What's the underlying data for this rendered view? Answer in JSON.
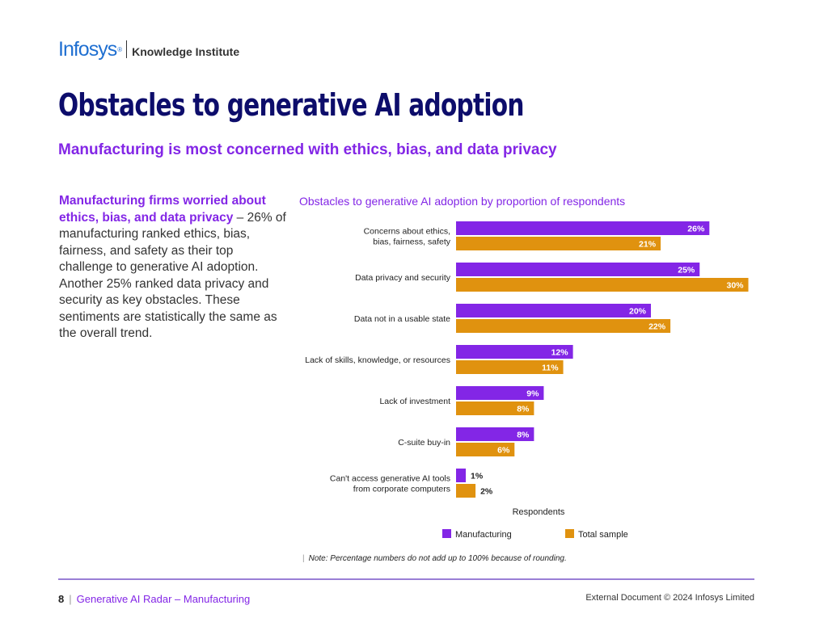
{
  "header": {
    "brand": "Infosys",
    "registered": "®",
    "sub_brand": "Knowledge Institute"
  },
  "page_title": "Obstacles to generative AI adoption",
  "subtitle": "Manufacturing is most concerned with ethics, bias, and data privacy",
  "body": {
    "highlight": "Manufacturing firms worried about ethics, bias, and data privacy",
    "text": " – 26% of manufacturing ranked ethics, bias, fairness, and safety as their top challenge to generative AI adoption. Another 25% ranked data privacy and security as key obstacles. These sentiments are statistically the same as the overall trend."
  },
  "chart_data": {
    "type": "bar",
    "orientation": "horizontal",
    "title": "Obstacles to generative AI adoption by proportion of respondents",
    "xlabel": "Respondents",
    "xlim": [
      0,
      30
    ],
    "categories": [
      [
        "Concerns about ethics,",
        "bias, fairness, safety"
      ],
      [
        "Data privacy and security"
      ],
      [
        "Data not in a usable state"
      ],
      [
        "Lack of skills, knowledge, or resources"
      ],
      [
        "Lack of investment"
      ],
      [
        "C-suite buy-in"
      ],
      [
        "Can't access generative AI tools",
        "from corporate computers"
      ]
    ],
    "series": [
      {
        "name": "Manufacturing",
        "color": "#8326e6",
        "values": [
          26,
          25,
          20,
          12,
          9,
          8,
          1
        ],
        "labels": [
          "26%",
          "25%",
          "20%",
          "12%",
          "9%",
          "8%",
          "1%"
        ]
      },
      {
        "name": "Total sample",
        "color": "#e0920f",
        "values": [
          21,
          30,
          22,
          11,
          8,
          6,
          2
        ],
        "labels": [
          "21%",
          "30%",
          "22%",
          "11%",
          "8%",
          "6%",
          "2%"
        ]
      }
    ],
    "legend_position": "bottom"
  },
  "note": {
    "separator": "|",
    "text": "Note: Percentage numbers do not add up to 100% because of rounding."
  },
  "footer": {
    "page_number": "8",
    "separator": "|",
    "doc_title": "Generative AI Radar – Manufacturing",
    "copyright": "External Document © 2024 Infosys Limited"
  }
}
